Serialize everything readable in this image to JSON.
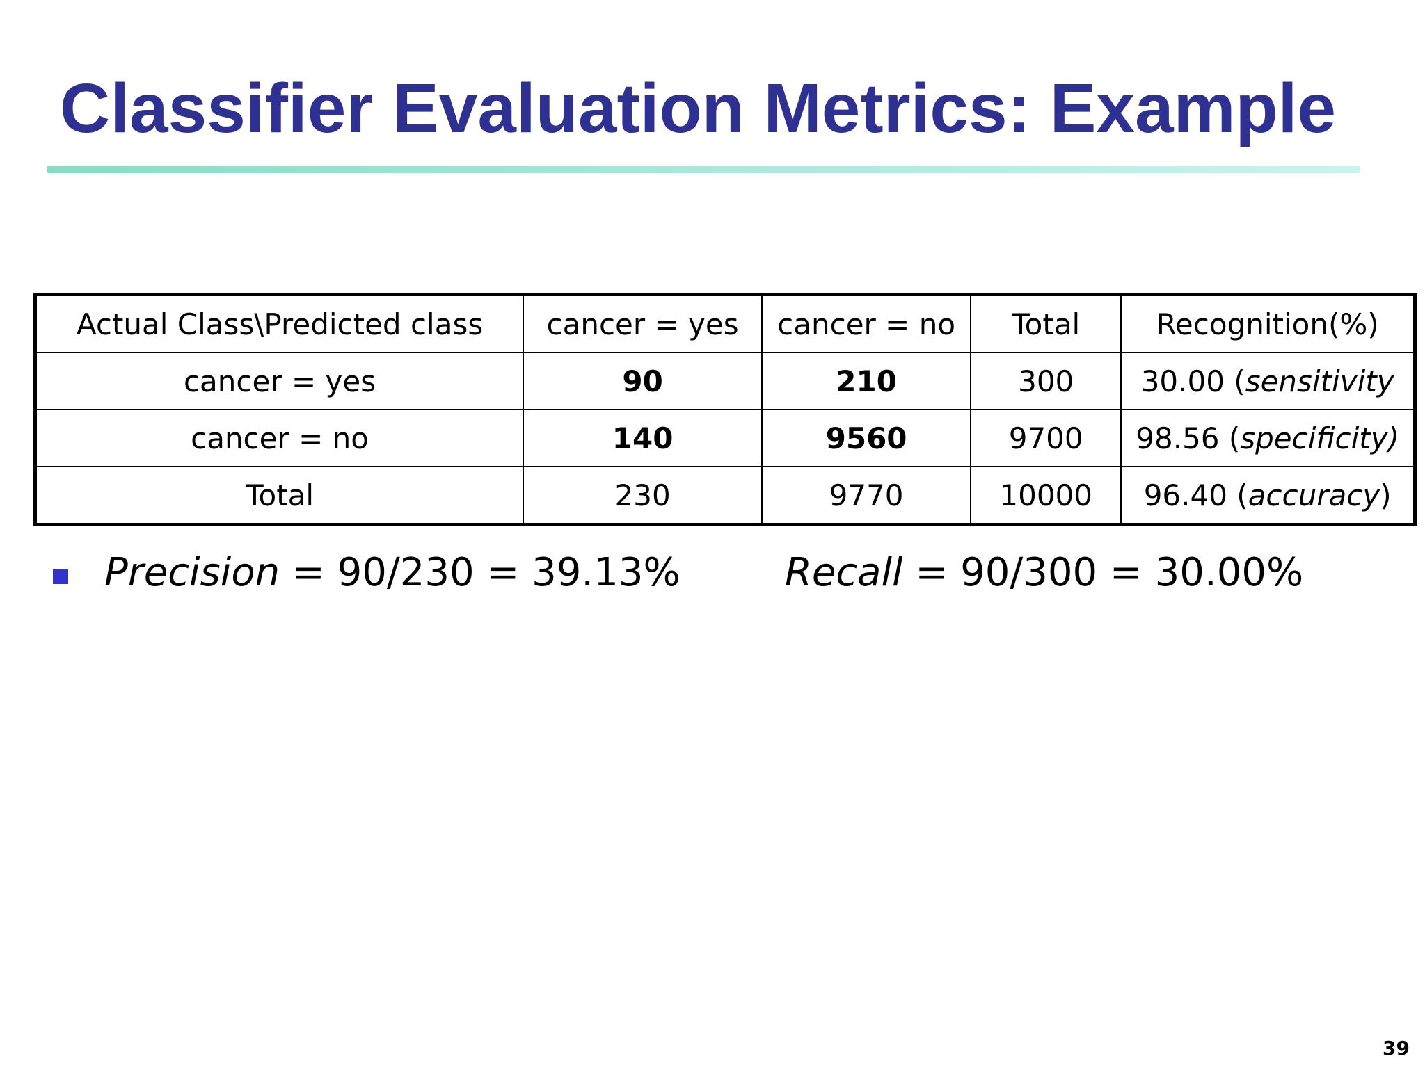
{
  "title": "Classifier Evaluation Metrics: Example",
  "colors": {
    "title": "#2e3192",
    "rule_start": "#7fe0c8",
    "rule_end": "#c7f5f0",
    "bullet": "#3333cc"
  },
  "table": {
    "headers": [
      "Actual Class\\Predicted class",
      "cancer = yes",
      "cancer = no",
      "Total",
      "Recognition(%)"
    ],
    "rows": [
      {
        "label": "cancer = yes",
        "c1": "90",
        "c2": "210",
        "total": "300",
        "recog_value": "30.00 (",
        "recog_term": "sensitivity",
        "recog_close": ""
      },
      {
        "label": "cancer = no",
        "c1": "140",
        "c2": "9560",
        "total": "9700",
        "recog_value": "98.56 (",
        "recog_term": "specificity)",
        "recog_close": ""
      },
      {
        "label": "Total",
        "c1": "230",
        "c2": "9770",
        "total": "10000",
        "recog_value": "96.40 (",
        "recog_term": "accuracy",
        "recog_close": ")"
      }
    ]
  },
  "bullet": {
    "icon": "square-bullet-icon",
    "precision_term": "Precision",
    "precision_formula": " = 90/230 = 39.13%",
    "recall_term": "Recall",
    "recall_formula": " = 90/300 = 30.00%"
  },
  "page_number": "39"
}
